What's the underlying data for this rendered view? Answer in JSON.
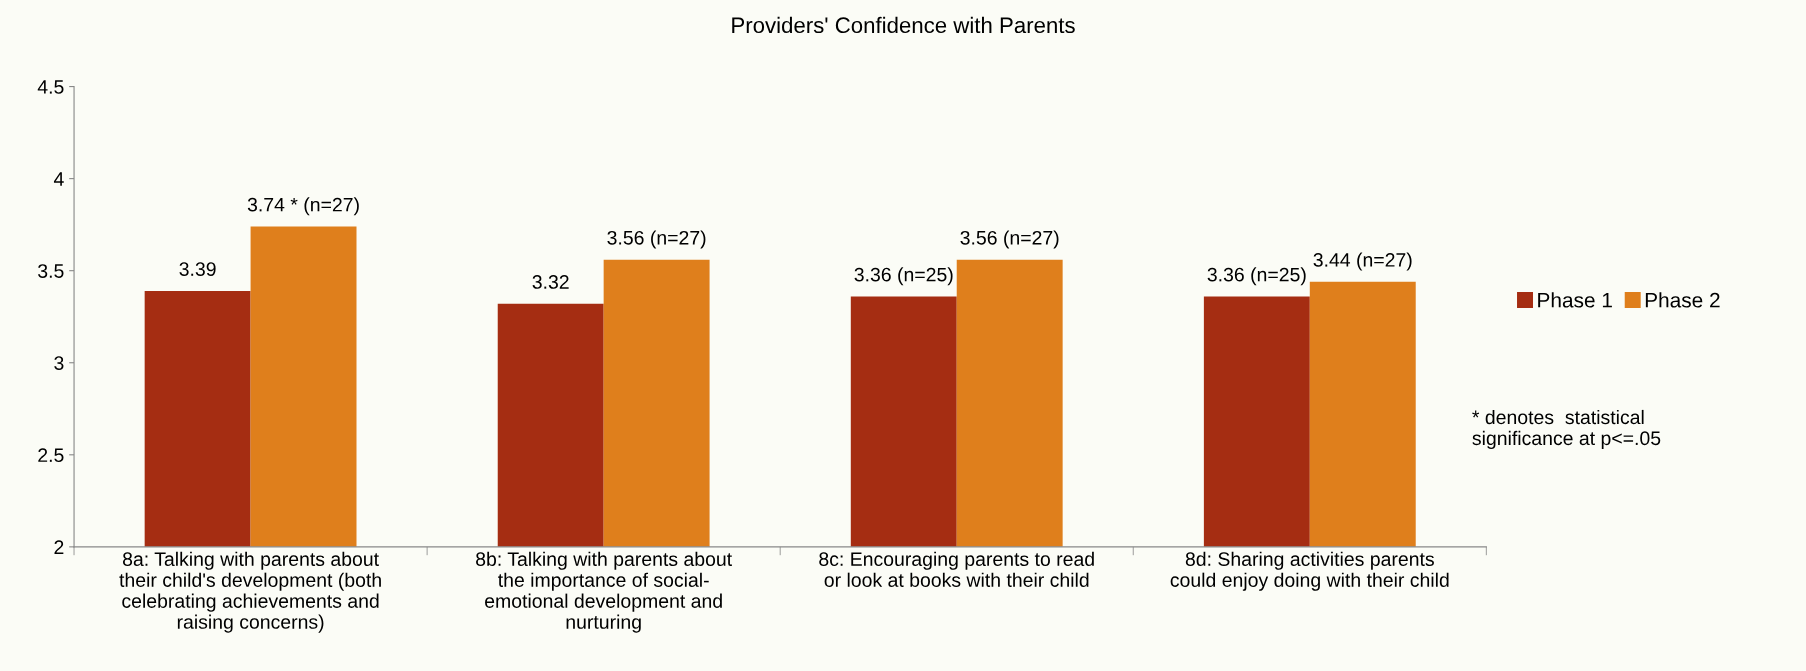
{
  "chart_data": {
    "type": "bar",
    "title": "Providers' Confidence with Parents",
    "categories": [
      "8a: Talking with parents about\ntheir child's development (both\ncelebrating achievements and\nraising concerns)",
      "8b: Talking with parents about\nthe importance of social-\nemotional development and\nnurturing",
      "8c: Encouraging parents to read\nor look at books with their child",
      "8d: Sharing activities parents\ncould enjoy doing with their child"
    ],
    "series": [
      {
        "name": "Phase 1",
        "color": "#a52d12",
        "values": [
          3.39,
          3.32,
          3.36,
          3.36
        ],
        "value_labels": [
          "3.39",
          "3.32",
          "3.36 (n=25)",
          "3.36 (n=25)"
        ]
      },
      {
        "name": "Phase 2",
        "color": "#df7f1c",
        "values": [
          3.74,
          3.56,
          3.56,
          3.44
        ],
        "value_labels": [
          "3.74 * (n=27)",
          "3.56 (n=27)",
          "3.56 (n=27)",
          "3.44 (n=27)"
        ]
      }
    ],
    "ylim": [
      2,
      4.5
    ],
    "yticks": [
      2,
      2.5,
      3,
      3.5,
      4,
      4.5
    ],
    "grid": false,
    "legend": "right",
    "annotations": [
      "* denotes  statistical\nsignificance at p<=.05"
    ]
  }
}
